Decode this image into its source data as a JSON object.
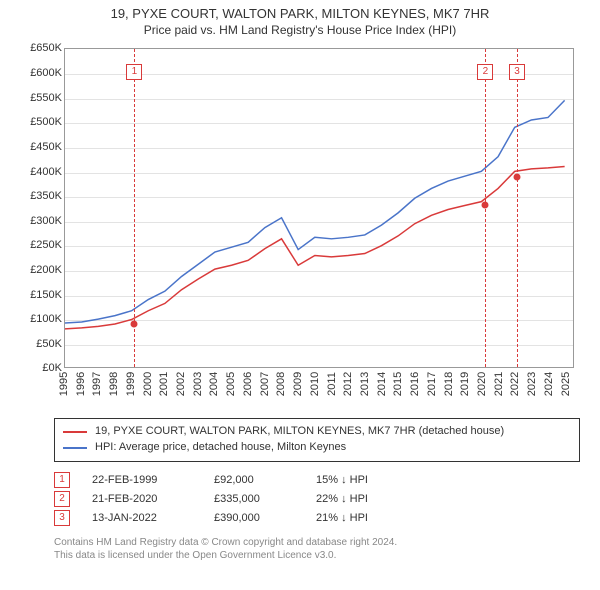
{
  "title": "19, PYXE COURT, WALTON PARK, MILTON KEYNES, MK7 7HR",
  "subtitle": "Price paid vs. HM Land Registry's House Price Index (HPI)",
  "chart": {
    "type": "line",
    "x_years": [
      1995,
      1996,
      1997,
      1998,
      1999,
      2000,
      2001,
      2002,
      2003,
      2004,
      2005,
      2006,
      2007,
      2008,
      2009,
      2010,
      2011,
      2012,
      2013,
      2014,
      2015,
      2016,
      2017,
      2018,
      2019,
      2020,
      2021,
      2022,
      2023,
      2024,
      2025
    ],
    "x_range": [
      1995,
      2025.5
    ],
    "ylim": [
      0,
      650
    ],
    "ytick_step": 50,
    "y_prefix": "£",
    "y_suffix": "K",
    "grid_color": "#e3e3e3",
    "axis_color": "#999999",
    "background_color": "#ffffff",
    "series": [
      {
        "name": "hpi",
        "color": "#4a74c9",
        "width": 1.5,
        "x": [
          1995,
          1996,
          1997,
          1998,
          1999,
          2000,
          2001,
          2002,
          2003,
          2004,
          2005,
          2006,
          2007,
          2008,
          2009,
          2010,
          2011,
          2012,
          2013,
          2014,
          2015,
          2016,
          2017,
          2018,
          2019,
          2020,
          2021,
          2022,
          2023,
          2024,
          2025
        ],
        "y": [
          90,
          92,
          98,
          105,
          115,
          138,
          155,
          185,
          210,
          235,
          245,
          255,
          285,
          305,
          240,
          265,
          262,
          265,
          270,
          290,
          315,
          345,
          365,
          380,
          390,
          400,
          430,
          490,
          505,
          510,
          545
        ]
      },
      {
        "name": "property",
        "color": "#d93a3a",
        "width": 1.5,
        "x": [
          1995,
          1996,
          1997,
          1998,
          1999,
          2000,
          2001,
          2002,
          2003,
          2004,
          2005,
          2006,
          2007,
          2008,
          2009,
          2010,
          2011,
          2012,
          2013,
          2014,
          2015,
          2016,
          2017,
          2018,
          2019,
          2020,
          2021,
          2022,
          2023,
          2024,
          2025
        ],
        "y": [
          78,
          80,
          83,
          88,
          97,
          115,
          130,
          158,
          180,
          200,
          208,
          218,
          242,
          262,
          208,
          228,
          225,
          228,
          232,
          248,
          268,
          293,
          310,
          322,
          330,
          338,
          365,
          400,
          405,
          407,
          410
        ]
      }
    ],
    "markers": [
      {
        "num": "1",
        "x": 1999.15,
        "y": 92,
        "box_y": 620
      },
      {
        "num": "2",
        "x": 2020.14,
        "y": 335,
        "box_y": 620
      },
      {
        "num": "3",
        "x": 2022.03,
        "y": 390,
        "box_y": 620
      }
    ]
  },
  "legend": {
    "series1_color": "#d93a3a",
    "series1_label": "19, PYXE COURT, WALTON PARK, MILTON KEYNES, MK7 7HR (detached house)",
    "series2_color": "#4a74c9",
    "series2_label": "HPI: Average price, detached house, Milton Keynes"
  },
  "events": [
    {
      "num": "1",
      "date": "22-FEB-1999",
      "price": "£92,000",
      "rel": "15% ↓ HPI"
    },
    {
      "num": "2",
      "date": "21-FEB-2020",
      "price": "£335,000",
      "rel": "22% ↓ HPI"
    },
    {
      "num": "3",
      "date": "13-JAN-2022",
      "price": "£390,000",
      "rel": "21% ↓ HPI"
    }
  ],
  "footer": {
    "line1": "Contains HM Land Registry data © Crown copyright and database right 2024.",
    "line2": "This data is licensed under the Open Government Licence v3.0."
  }
}
